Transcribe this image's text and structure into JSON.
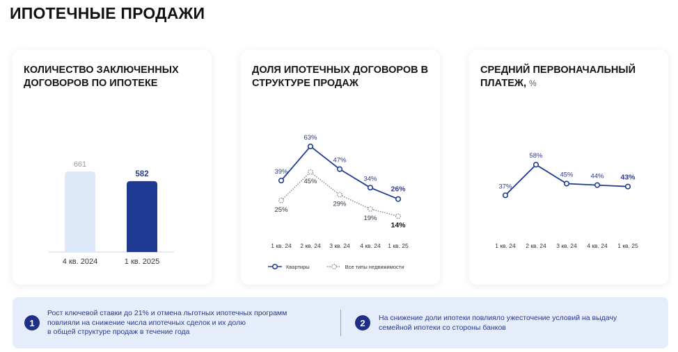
{
  "page": {
    "title": "ИПОТЕЧНЫЕ ПРОДАЖИ"
  },
  "colors": {
    "navy": "#1f3a93",
    "light_blue": "#dde8f8",
    "dotted_gray": "#808080",
    "panel_bg": "#e4edf9"
  },
  "chart_data": [
    {
      "type": "bar",
      "title": "КОЛИЧЕСТВО ЗАКЛЮЧЕННЫХ ДОГОВОРОВ ПО ИПОТЕКЕ",
      "categories": [
        "4 кв. 2024",
        "1 кв. 2025"
      ],
      "values": [
        661,
        582
      ],
      "value_labels": [
        "661",
        "582"
      ],
      "bar_colors": [
        "#dde8f8",
        "#1f3a93"
      ],
      "ylim": [
        0,
        661
      ]
    },
    {
      "type": "line",
      "title": "ДОЛЯ ИПОТЕЧНЫХ ДОГОВОРОВ В СТРУКТУРЕ ПРОДАЖ",
      "categories": [
        "1 кв. 24",
        "2 кв. 24",
        "3 кв. 24",
        "4 кв. 24",
        "1 кв. 25"
      ],
      "ylim": [
        0,
        70
      ],
      "legend_position": "bottom",
      "series": [
        {
          "name": "Квартиры",
          "values": [
            39,
            63,
            47,
            34,
            26
          ],
          "labels": [
            "39%",
            "63%",
            "47%",
            "34%",
            "26%"
          ],
          "style": "solid",
          "color": "#1f3a93"
        },
        {
          "name": "Все типы недвижимости",
          "values": [
            25,
            45,
            29,
            19,
            14
          ],
          "labels": [
            "25%",
            "45%",
            "29%",
            "19%",
            "14%"
          ],
          "style": "dotted",
          "color": "#808080"
        }
      ]
    },
    {
      "type": "line",
      "title": "СРЕДНИЙ ПЕРВОНАЧАЛЬНЫЙ ПЛАТЕЖ,",
      "unit": "%",
      "categories": [
        "1 кв. 24",
        "2 кв. 24",
        "3 кв. 24",
        "4 кв. 24",
        "1 кв. 25"
      ],
      "ylim": [
        0,
        70
      ],
      "series": [
        {
          "values": [
            37,
            58,
            45,
            44,
            43
          ],
          "labels": [
            "37%",
            "58%",
            "45%",
            "44%",
            "43%"
          ],
          "style": "solid",
          "color": "#1f3a93"
        }
      ]
    }
  ],
  "info": {
    "items": [
      {
        "number": "1",
        "lines": [
          "Рост ключевой ставки до 21% и отмена льготных ипотечных программ",
          "повлияли на снижение числа ипотечных сделок и их долю",
          "в общей структуре продаж в течение года"
        ]
      },
      {
        "number": "2",
        "lines": [
          "На снижение доли ипотеки повлияло ужесточение условий на выдачу",
          "семейной ипотеки со стороны банков"
        ]
      }
    ]
  }
}
